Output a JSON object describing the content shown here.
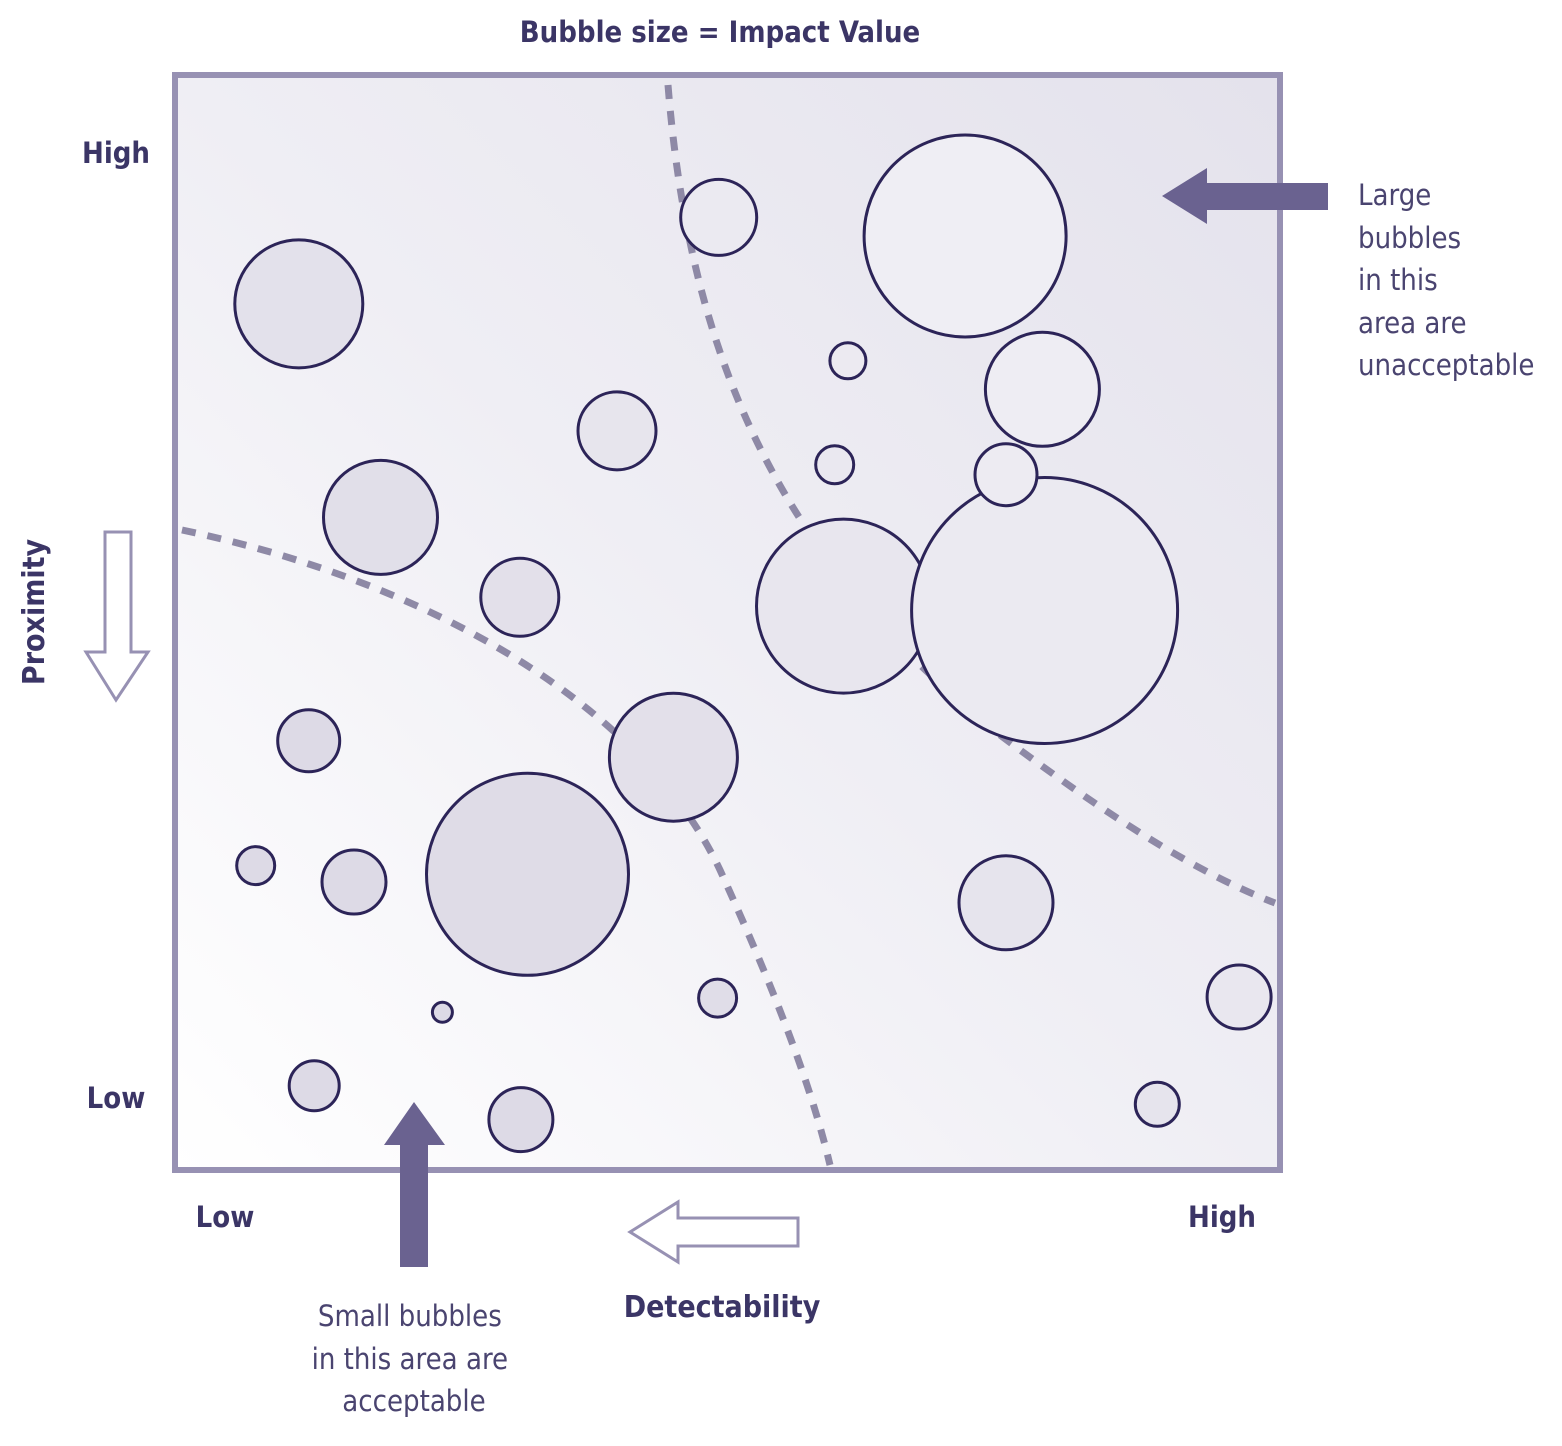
{
  "chart_data": {
    "type": "bubble",
    "title": "Bubble size = Impact Value",
    "xlabel": "Detectability",
    "ylabel": "Proximity",
    "x_ticks": [
      "Low",
      "High"
    ],
    "y_ticks": [
      "High",
      "Low"
    ],
    "xlim": [
      0,
      100
    ],
    "ylim": [
      0,
      100
    ],
    "grid": false,
    "colors": {
      "frame": "#9791b3",
      "bubble_stroke": "#2c2458",
      "bubble_fill_low": "#dddae6",
      "bubble_fill_high": "#fafafc",
      "dashed_line": "#8e89a6",
      "arrow_solid": "#6a6290"
    },
    "points": [
      {
        "x": 11.2,
        "y": 79.1,
        "size": 64
      },
      {
        "x": 18.6,
        "y": 59.6,
        "size": 57
      },
      {
        "x": 12.1,
        "y": 39.2,
        "size": 31
      },
      {
        "x": 7.3,
        "y": 27.8,
        "size": 19
      },
      {
        "x": 16.2,
        "y": 26.3,
        "size": 32
      },
      {
        "x": 12.6,
        "y": 7.7,
        "size": 25
      },
      {
        "x": 24.2,
        "y": 14.4,
        "size": 10
      },
      {
        "x": 31.9,
        "y": 27.0,
        "size": 101
      },
      {
        "x": 31.3,
        "y": 4.6,
        "size": 32
      },
      {
        "x": 31.2,
        "y": 52.3,
        "size": 39
      },
      {
        "x": 40.0,
        "y": 67.5,
        "size": 39
      },
      {
        "x": 45.1,
        "y": 37.7,
        "size": 64
      },
      {
        "x": 49.1,
        "y": 15.7,
        "size": 19
      },
      {
        "x": 49.2,
        "y": 87.0,
        "size": 38
      },
      {
        "x": 60.9,
        "y": 73.9,
        "size": 18
      },
      {
        "x": 59.7,
        "y": 64.4,
        "size": 19
      },
      {
        "x": 60.5,
        "y": 51.5,
        "size": 87
      },
      {
        "x": 71.5,
        "y": 85.3,
        "size": 101
      },
      {
        "x": 78.5,
        "y": 71.3,
        "size": 57
      },
      {
        "x": 78.7,
        "y": 51.1,
        "size": 133
      },
      {
        "x": 75.2,
        "y": 63.5,
        "size": 31
      },
      {
        "x": 75.2,
        "y": 24.4,
        "size": 47
      },
      {
        "x": 96.3,
        "y": 15.8,
        "size": 32
      },
      {
        "x": 88.9,
        "y": 6.0,
        "size": 22
      }
    ],
    "annotations": {
      "top_right": "Large bubbles in this area are unacceptable",
      "top_right_lines": [
        "Large",
        "bubbles",
        "in this",
        "area are",
        "unacceptable"
      ],
      "bottom_left": "Small bubbles in this area are acceptable",
      "bottom_left_lines": [
        "Small bubbles",
        "in this area are",
        "acceptable"
      ]
    }
  }
}
